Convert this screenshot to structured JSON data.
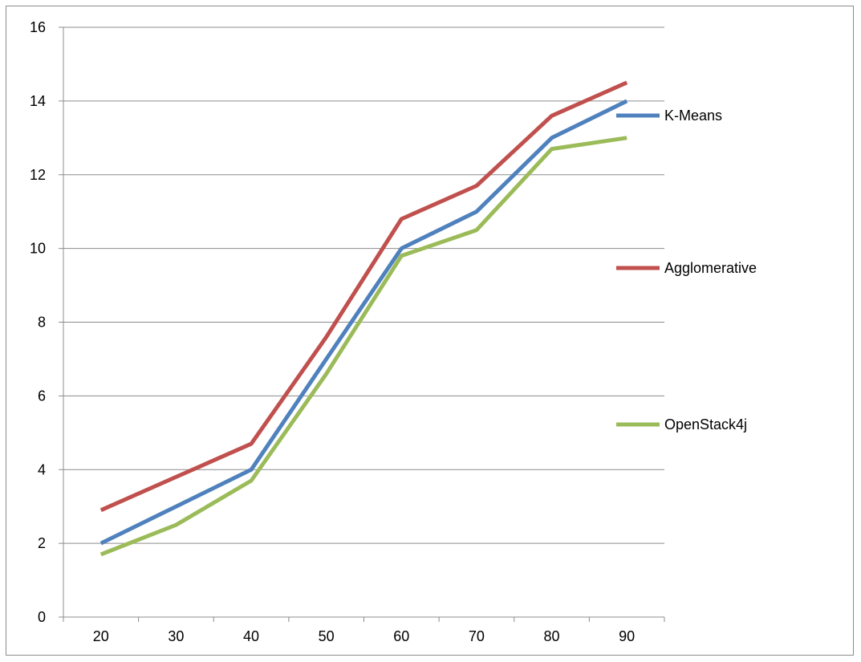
{
  "chart_data": {
    "type": "line",
    "categories": [
      "20",
      "30",
      "40",
      "50",
      "60",
      "70",
      "80",
      "90"
    ],
    "ylim": [
      0,
      16
    ],
    "yticks": [
      "0",
      "2",
      "4",
      "6",
      "8",
      "10",
      "12",
      "14",
      "16"
    ],
    "grid": "horizontal",
    "legend_position": "right",
    "series": [
      {
        "name": "K-Means",
        "color": "#4f81bd",
        "values": [
          2.0,
          3.0,
          4.0,
          7.0,
          10.0,
          11.0,
          13.0,
          14.0
        ]
      },
      {
        "name": "Agglomerative",
        "color": "#c0504d",
        "values": [
          2.9,
          3.8,
          4.7,
          7.6,
          10.8,
          11.7,
          13.6,
          14.5
        ]
      },
      {
        "name": "OpenStack4j",
        "color": "#9bbb59",
        "values": [
          1.7,
          2.5,
          3.7,
          6.6,
          9.8,
          10.5,
          12.7,
          13.0
        ]
      }
    ]
  }
}
